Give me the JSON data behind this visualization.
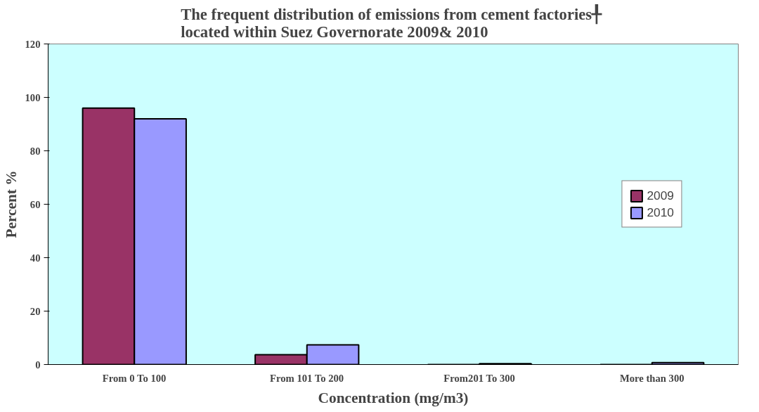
{
  "chart_data": {
    "type": "bar",
    "title": "The frequent distribution of emissions from cement  factories╀\nlocated within Suez Governorate  2009& 2010",
    "xlabel": "Concentration (mg/m3)",
    "ylabel": "Percent %",
    "categories": [
      "From 0 To 100",
      "From 101 To 200",
      "From201 To 300",
      "More than 300"
    ],
    "series": [
      {
        "name": "2009",
        "color": "#993366",
        "values": [
          96,
          3.7,
          null,
          null
        ]
      },
      {
        "name": "2010",
        "color": "#9999ff",
        "values": [
          92,
          7.4,
          0.3,
          0.7
        ]
      }
    ],
    "ylim": [
      0,
      120
    ],
    "yticks": [
      0,
      20,
      40,
      60,
      80,
      100,
      120
    ],
    "grid": false,
    "legend": "right"
  }
}
